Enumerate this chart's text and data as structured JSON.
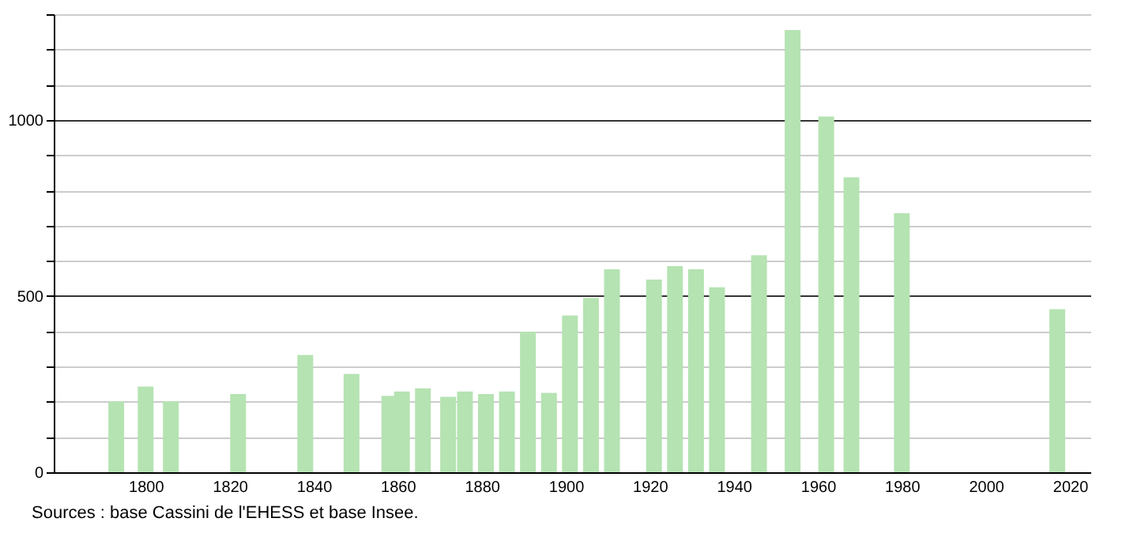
{
  "chart_data": {
    "type": "bar",
    "x": [
      1793,
      1800,
      1806,
      1822,
      1838,
      1849,
      1858,
      1861,
      1866,
      1872,
      1876,
      1881,
      1886,
      1891,
      1896,
      1901,
      1906,
      1911,
      1921,
      1926,
      1931,
      1936,
      1946,
      1954,
      1962,
      1968,
      1980,
      2017
    ],
    "values": [
      201,
      243,
      201,
      222,
      333,
      279,
      217,
      229,
      238,
      214,
      229,
      222,
      229,
      399,
      225,
      445,
      495,
      576,
      547,
      585,
      576,
      525,
      616,
      1255,
      1010,
      837,
      735,
      463
    ],
    "color": "#b5e3b2",
    "xlim": [
      1780,
      2023
    ],
    "xticks": [
      1800,
      1820,
      1840,
      1860,
      1880,
      1900,
      1920,
      1940,
      1960,
      1980,
      2000,
      2020
    ],
    "ylim": [
      0,
      1300
    ],
    "yticks": [
      0,
      {
        "value": 100,
        "label": null
      },
      {
        "value": 200,
        "label": null
      },
      {
        "value": 300,
        "label": null
      },
      {
        "value": 400,
        "label": null
      },
      500,
      {
        "value": 600,
        "label": null
      },
      {
        "value": 700,
        "label": null
      },
      {
        "value": 800,
        "label": null
      },
      {
        "value": 900,
        "label": null
      },
      1000,
      {
        "value": 1100,
        "label": null
      },
      {
        "value": 1200,
        "label": null
      },
      {
        "value": 1300,
        "label": null
      }
    ],
    "grid": "y",
    "annotations": [
      "Sources : base Cassini de l'EHESS et base Insee."
    ]
  }
}
